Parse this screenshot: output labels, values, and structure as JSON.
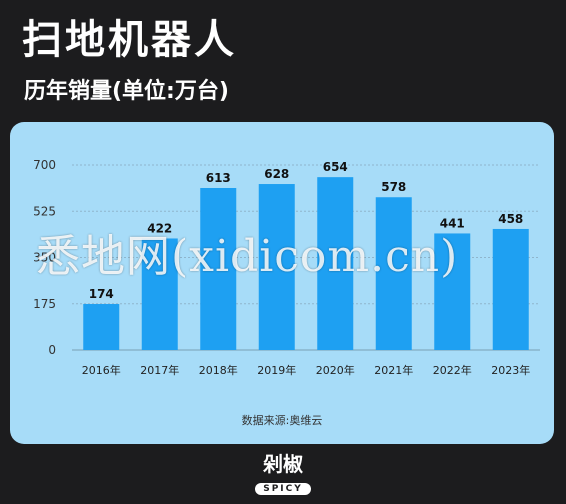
{
  "header": {
    "title": "扫地机器人",
    "subtitle": "历年销量(单位:万台)"
  },
  "chart_data": {
    "type": "bar",
    "categories": [
      "2016年",
      "2017年",
      "2018年",
      "2019年",
      "2020年",
      "2021年",
      "2022年",
      "2023年"
    ],
    "values": [
      174,
      422,
      613,
      628,
      654,
      578,
      441,
      458
    ],
    "yticks": [
      0,
      175,
      350,
      525,
      700
    ],
    "ylim": [
      0,
      700
    ],
    "grid": true,
    "bar_color": "#1ea0f2"
  },
  "source": "数据来源:奥维云",
  "watermark": "悉地网(xidicom.cn)",
  "logo": {
    "main": "剁椒",
    "sub": "SPICY"
  }
}
